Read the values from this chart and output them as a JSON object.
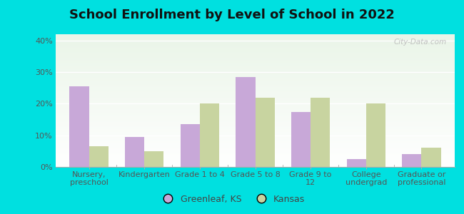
{
  "title": "School Enrollment by Level of School in 2022",
  "categories": [
    "Nursery,\npreschool",
    "Kindergarten",
    "Grade 1 to 4",
    "Grade 5 to 8",
    "Grade 9 to\n12",
    "College\nundergrad",
    "Graduate or\nprofessional"
  ],
  "greenleaf_values": [
    25.5,
    9.5,
    13.5,
    28.5,
    17.5,
    2.5,
    4.0
  ],
  "kansas_values": [
    6.5,
    5.0,
    20.0,
    22.0,
    22.0,
    20.0,
    6.0
  ],
  "greenleaf_color": "#c8a8d8",
  "kansas_color": "#c8d4a0",
  "background_outer": "#00e0e0",
  "ylim": [
    0,
    42
  ],
  "yticks": [
    0,
    10,
    20,
    30,
    40
  ],
  "ytick_labels": [
    "0%",
    "10%",
    "20%",
    "30%",
    "40%"
  ],
  "legend_label_greenleaf": "Greenleaf, KS",
  "legend_label_kansas": "Kansas",
  "watermark": "City-Data.com",
  "bar_width": 0.35,
  "title_fontsize": 13,
  "tick_fontsize": 8,
  "legend_fontsize": 9
}
